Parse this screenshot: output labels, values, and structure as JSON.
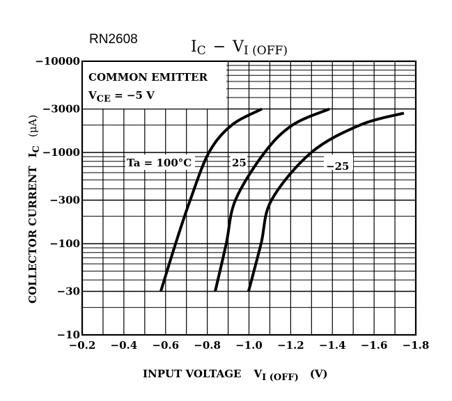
{
  "part_number": "RN2608",
  "chart_data": {
    "type": "line",
    "title": {
      "main": "I",
      "main_sub": "C",
      "dash": "−",
      "v": "V",
      "v_sub": "I (OFF)"
    },
    "xlabel": {
      "text": "INPUT VOLTAGE",
      "symbol": "V",
      "symbol_sub": "I (OFF)",
      "unit": "(V)"
    },
    "ylabel": {
      "text": "COLLECTOR CURRENT",
      "symbol": "I",
      "symbol_sub": "C",
      "unit": "(μA)"
    },
    "xlim": [
      -0.2,
      -1.8
    ],
    "ylim": [
      -10,
      -10000
    ],
    "yscale": "log",
    "grid": true,
    "x_ticks": [
      "−0.2",
      "−0.4",
      "−0.6",
      "−0.8",
      "−1.0",
      "−1.2",
      "−1.4",
      "−1.6",
      "−1.8"
    ],
    "x_tick_values": [
      -0.2,
      -0.4,
      -0.6,
      -0.8,
      -1.0,
      -1.2,
      -1.4,
      -1.6,
      -1.8
    ],
    "y_ticks": [
      "−10000",
      "−3000",
      "−1000",
      "−300",
      "−100",
      "−30",
      "−10"
    ],
    "y_tick_values": [
      -10000,
      -3000,
      -1000,
      -300,
      -100,
      -30,
      -10
    ],
    "legend_box": {
      "line1": "COMMON EMITTER",
      "line2_sym": "V",
      "line2_sub": "CE",
      "line2_rest": " = −5 V",
      "placement": "top-left"
    },
    "series": [
      {
        "name": "Ta = 100°C",
        "x": [
          -0.577,
          -0.648,
          -0.718,
          -0.808,
          -0.918,
          -1.062
        ],
        "y": [
          -30,
          -100,
          -300,
          -1000,
          -2000,
          -3000
        ]
      },
      {
        "name": "25",
        "x": [
          -0.838,
          -0.891,
          -0.935,
          -1.075,
          -1.209,
          -1.386
        ],
        "y": [
          -30,
          -100,
          -300,
          -1000,
          -2000,
          -3000
        ]
      },
      {
        "name": "−25",
        "x": [
          -0.998,
          -1.058,
          -1.108,
          -1.299,
          -1.533,
          -1.743
        ],
        "y": [
          -30,
          -100,
          -300,
          -1000,
          -2000,
          -2700
        ]
      }
    ],
    "line_color": "#000000"
  }
}
